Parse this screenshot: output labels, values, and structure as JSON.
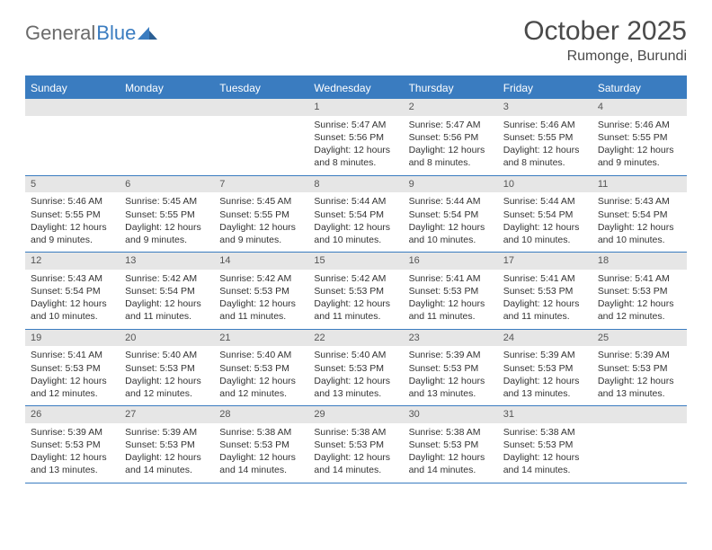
{
  "brand": {
    "part1": "General",
    "part2": "Blue"
  },
  "title": "October 2025",
  "location": "Rumonge, Burundi",
  "colors": {
    "header_bg": "#3a7cc0",
    "daynum_bg": "#e6e6e6",
    "text": "#333333",
    "page_bg": "#ffffff"
  },
  "days_of_week": [
    "Sunday",
    "Monday",
    "Tuesday",
    "Wednesday",
    "Thursday",
    "Friday",
    "Saturday"
  ],
  "weeks": [
    [
      null,
      null,
      null,
      {
        "n": "1",
        "sr": "5:47 AM",
        "ss": "5:56 PM",
        "dl": "12 hours and 8 minutes."
      },
      {
        "n": "2",
        "sr": "5:47 AM",
        "ss": "5:56 PM",
        "dl": "12 hours and 8 minutes."
      },
      {
        "n": "3",
        "sr": "5:46 AM",
        "ss": "5:55 PM",
        "dl": "12 hours and 8 minutes."
      },
      {
        "n": "4",
        "sr": "5:46 AM",
        "ss": "5:55 PM",
        "dl": "12 hours and 9 minutes."
      }
    ],
    [
      {
        "n": "5",
        "sr": "5:46 AM",
        "ss": "5:55 PM",
        "dl": "12 hours and 9 minutes."
      },
      {
        "n": "6",
        "sr": "5:45 AM",
        "ss": "5:55 PM",
        "dl": "12 hours and 9 minutes."
      },
      {
        "n": "7",
        "sr": "5:45 AM",
        "ss": "5:55 PM",
        "dl": "12 hours and 9 minutes."
      },
      {
        "n": "8",
        "sr": "5:44 AM",
        "ss": "5:54 PM",
        "dl": "12 hours and 10 minutes."
      },
      {
        "n": "9",
        "sr": "5:44 AM",
        "ss": "5:54 PM",
        "dl": "12 hours and 10 minutes."
      },
      {
        "n": "10",
        "sr": "5:44 AM",
        "ss": "5:54 PM",
        "dl": "12 hours and 10 minutes."
      },
      {
        "n": "11",
        "sr": "5:43 AM",
        "ss": "5:54 PM",
        "dl": "12 hours and 10 minutes."
      }
    ],
    [
      {
        "n": "12",
        "sr": "5:43 AM",
        "ss": "5:54 PM",
        "dl": "12 hours and 10 minutes."
      },
      {
        "n": "13",
        "sr": "5:42 AM",
        "ss": "5:54 PM",
        "dl": "12 hours and 11 minutes."
      },
      {
        "n": "14",
        "sr": "5:42 AM",
        "ss": "5:53 PM",
        "dl": "12 hours and 11 minutes."
      },
      {
        "n": "15",
        "sr": "5:42 AM",
        "ss": "5:53 PM",
        "dl": "12 hours and 11 minutes."
      },
      {
        "n": "16",
        "sr": "5:41 AM",
        "ss": "5:53 PM",
        "dl": "12 hours and 11 minutes."
      },
      {
        "n": "17",
        "sr": "5:41 AM",
        "ss": "5:53 PM",
        "dl": "12 hours and 11 minutes."
      },
      {
        "n": "18",
        "sr": "5:41 AM",
        "ss": "5:53 PM",
        "dl": "12 hours and 12 minutes."
      }
    ],
    [
      {
        "n": "19",
        "sr": "5:41 AM",
        "ss": "5:53 PM",
        "dl": "12 hours and 12 minutes."
      },
      {
        "n": "20",
        "sr": "5:40 AM",
        "ss": "5:53 PM",
        "dl": "12 hours and 12 minutes."
      },
      {
        "n": "21",
        "sr": "5:40 AM",
        "ss": "5:53 PM",
        "dl": "12 hours and 12 minutes."
      },
      {
        "n": "22",
        "sr": "5:40 AM",
        "ss": "5:53 PM",
        "dl": "12 hours and 13 minutes."
      },
      {
        "n": "23",
        "sr": "5:39 AM",
        "ss": "5:53 PM",
        "dl": "12 hours and 13 minutes."
      },
      {
        "n": "24",
        "sr": "5:39 AM",
        "ss": "5:53 PM",
        "dl": "12 hours and 13 minutes."
      },
      {
        "n": "25",
        "sr": "5:39 AM",
        "ss": "5:53 PM",
        "dl": "12 hours and 13 minutes."
      }
    ],
    [
      {
        "n": "26",
        "sr": "5:39 AM",
        "ss": "5:53 PM",
        "dl": "12 hours and 13 minutes."
      },
      {
        "n": "27",
        "sr": "5:39 AM",
        "ss": "5:53 PM",
        "dl": "12 hours and 14 minutes."
      },
      {
        "n": "28",
        "sr": "5:38 AM",
        "ss": "5:53 PM",
        "dl": "12 hours and 14 minutes."
      },
      {
        "n": "29",
        "sr": "5:38 AM",
        "ss": "5:53 PM",
        "dl": "12 hours and 14 minutes."
      },
      {
        "n": "30",
        "sr": "5:38 AM",
        "ss": "5:53 PM",
        "dl": "12 hours and 14 minutes."
      },
      {
        "n": "31",
        "sr": "5:38 AM",
        "ss": "5:53 PM",
        "dl": "12 hours and 14 minutes."
      },
      null
    ]
  ],
  "labels": {
    "sunrise_prefix": "Sunrise: ",
    "sunset_prefix": "Sunset: ",
    "daylight_prefix": "Daylight: "
  }
}
